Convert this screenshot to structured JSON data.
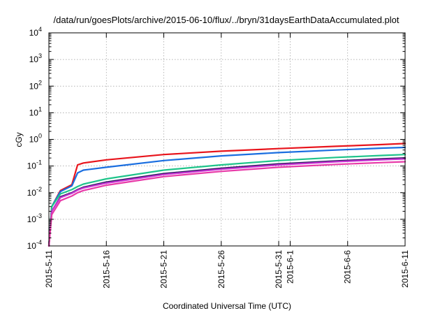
{
  "chart_data": {
    "type": "line",
    "title": "/data/run/goesPlots/archive/2015-06-10/flux/../bryn/31daysEarthDataAccumulated.plot",
    "xlabel": "Coordinated Universal Time (UTC)",
    "ylabel": "cGy",
    "y_scale": "log",
    "ylim": [
      0.0001,
      10000
    ],
    "x_range": [
      "2015-05-11",
      "2015-06-11"
    ],
    "x_ticks": [
      "2015-5-11",
      "2015-5-16",
      "2015-5-21",
      "2015-5-26",
      "2015-5-31",
      "2015-6-1",
      "2015-6-6",
      "2015-6-11"
    ],
    "y_ticks": [
      {
        "base": "10",
        "exp": "-4"
      },
      {
        "base": "10",
        "exp": "-3"
      },
      {
        "base": "10",
        "exp": "-2"
      },
      {
        "base": "10",
        "exp": "-1"
      },
      {
        "base": "10",
        "exp": "0"
      },
      {
        "base": "10",
        "exp": "1"
      },
      {
        "base": "10",
        "exp": "2"
      },
      {
        "base": "10",
        "exp": "3"
      },
      {
        "base": "10",
        "exp": "4"
      }
    ],
    "grid": true,
    "series": [
      {
        "color": "#e8141c",
        "x": [
          "2015-05-11",
          "2015-05-11T06:00",
          "2015-05-12",
          "2015-05-13",
          "2015-05-13T12:00",
          "2015-05-14",
          "2015-05-16",
          "2015-05-21",
          "2015-05-26",
          "2015-05-31",
          "2015-06-05",
          "2015-06-09",
          "2015-06-11"
        ],
        "y": [
          0.0001,
          0.003,
          0.012,
          0.02,
          0.11,
          0.13,
          0.17,
          0.27,
          0.36,
          0.45,
          0.55,
          0.64,
          0.7
        ]
      },
      {
        "color": "#1a6ee0",
        "x": [
          "2015-05-11",
          "2015-05-11T06:00",
          "2015-05-12",
          "2015-05-13",
          "2015-05-13T12:00",
          "2015-05-14",
          "2015-05-16",
          "2015-05-21",
          "2015-05-26",
          "2015-05-31",
          "2015-06-05",
          "2015-06-09",
          "2015-06-11"
        ],
        "y": [
          0.0001,
          0.003,
          0.011,
          0.018,
          0.055,
          0.07,
          0.09,
          0.16,
          0.24,
          0.32,
          0.4,
          0.47,
          0.5
        ]
      },
      {
        "color": "#1ec48a",
        "x": [
          "2015-05-11",
          "2015-05-11T06:00",
          "2015-05-12",
          "2015-05-13",
          "2015-05-13T12:00",
          "2015-05-14",
          "2015-05-16",
          "2015-05-21",
          "2015-05-26",
          "2015-05-31",
          "2015-06-05",
          "2015-06-09",
          "2015-06-11"
        ],
        "y": [
          0.0001,
          0.003,
          0.009,
          0.013,
          0.017,
          0.021,
          0.033,
          0.07,
          0.11,
          0.16,
          0.21,
          0.25,
          0.27
        ]
      },
      {
        "color": "#2c1a5e",
        "x": [
          "2015-05-11",
          "2015-05-11T06:00",
          "2015-05-12",
          "2015-05-13",
          "2015-05-13T12:00",
          "2015-05-14",
          "2015-05-16",
          "2015-05-21",
          "2015-05-26",
          "2015-05-31",
          "2015-06-05",
          "2015-06-09",
          "2015-06-11"
        ],
        "y": [
          0.0001,
          0.002,
          0.007,
          0.01,
          0.013,
          0.016,
          0.025,
          0.052,
          0.082,
          0.12,
          0.155,
          0.185,
          0.2
        ]
      },
      {
        "color": "#c832d4",
        "x": [
          "2015-05-11",
          "2015-05-11T06:00",
          "2015-05-12",
          "2015-05-13",
          "2015-05-13T12:00",
          "2015-05-14",
          "2015-05-16",
          "2015-05-21",
          "2015-05-26",
          "2015-05-31",
          "2015-06-05",
          "2015-06-09",
          "2015-06-11"
        ],
        "y": [
          0.0001,
          0.002,
          0.0065,
          0.0095,
          0.0125,
          0.015,
          0.023,
          0.048,
          0.076,
          0.11,
          0.145,
          0.172,
          0.185
        ]
      },
      {
        "color": "#e83aa8",
        "x": [
          "2015-05-11",
          "2015-05-11T06:00",
          "2015-05-12",
          "2015-05-13",
          "2015-05-13T12:00",
          "2015-05-14",
          "2015-05-16",
          "2015-05-21",
          "2015-05-26",
          "2015-05-31",
          "2015-06-05",
          "2015-06-09",
          "2015-06-11"
        ],
        "y": [
          0.0001,
          0.0015,
          0.005,
          0.0075,
          0.01,
          0.012,
          0.019,
          0.04,
          0.063,
          0.09,
          0.115,
          0.135,
          0.145
        ]
      }
    ]
  }
}
